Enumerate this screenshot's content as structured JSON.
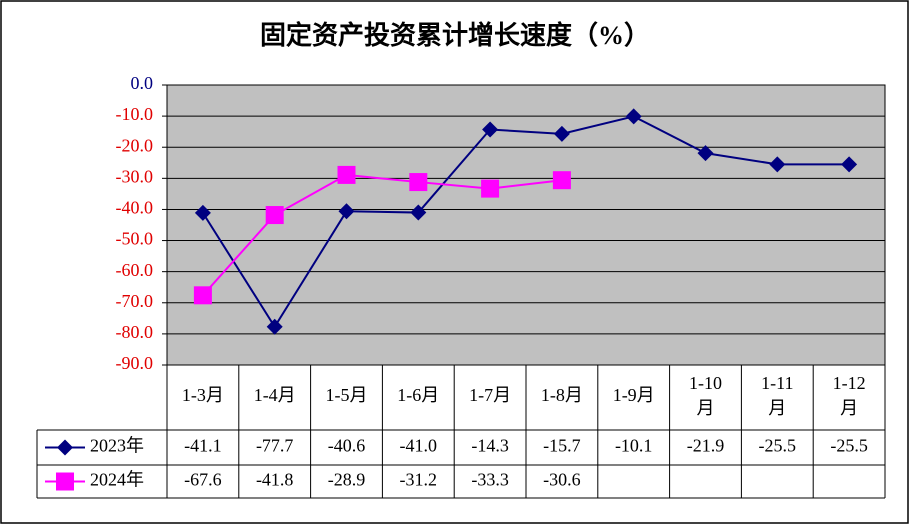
{
  "chart_data": {
    "type": "line",
    "title": "固定资产投资累计增长速度（%）",
    "categories": [
      "1-3月",
      "1-4月",
      "1-5月",
      "1-6月",
      "1-7月",
      "1-8月",
      "1-9月",
      "1-10月",
      "1-11月",
      "1-12月"
    ],
    "series": [
      {
        "name": "2023年",
        "color": "#000080",
        "marker": "diamond",
        "values": [
          -41.1,
          -77.7,
          -40.6,
          -41.0,
          -14.3,
          -15.7,
          -10.1,
          -21.9,
          -25.5,
          -25.5
        ],
        "value_labels": [
          "-41.1",
          "-77.7",
          "-40.6",
          "-41.0",
          "-14.3",
          "-15.7",
          "-10.1",
          "-21.9",
          "-25.5",
          "-25.5"
        ]
      },
      {
        "name": "2024年",
        "color": "#ff00ff",
        "marker": "square",
        "values": [
          -67.6,
          -41.8,
          -28.9,
          -31.2,
          -33.3,
          -30.6,
          null,
          null,
          null,
          null
        ],
        "value_labels": [
          "-67.6",
          "-41.8",
          "-28.9",
          "-31.2",
          "-33.3",
          "-30.6",
          null,
          null,
          null,
          null
        ]
      }
    ],
    "ylim": [
      -90,
      0
    ],
    "yticks": [
      {
        "value": 0,
        "label": "0.0"
      },
      {
        "value": -10,
        "label": "-10.0"
      },
      {
        "value": -20,
        "label": "-20.0"
      },
      {
        "value": -30,
        "label": "-30.0"
      },
      {
        "value": -40,
        "label": "-40.0"
      },
      {
        "value": -50,
        "label": "-50.0"
      },
      {
        "value": -60,
        "label": "-60.0"
      },
      {
        "value": -70,
        "label": "-70.0"
      },
      {
        "value": -80,
        "label": "-80.0"
      },
      {
        "value": -90,
        "label": "-90.0"
      }
    ],
    "grid": true,
    "plot_background": "#c0c0c0"
  }
}
